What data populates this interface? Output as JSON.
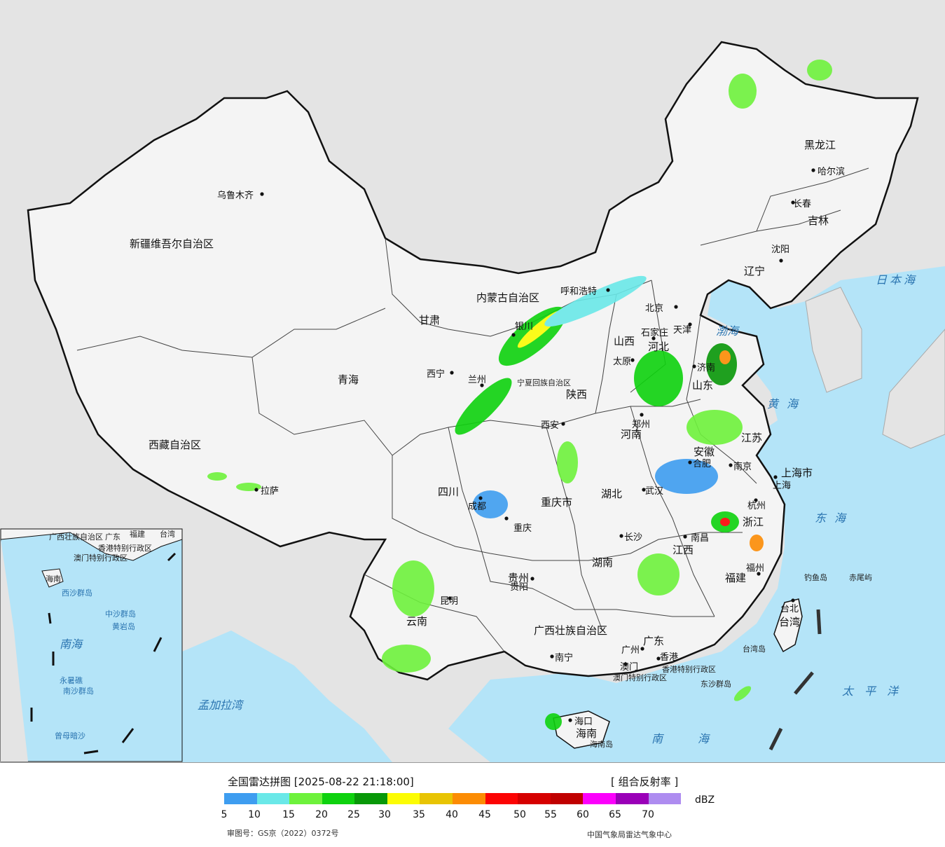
{
  "map": {
    "cities": [
      {
        "name": "乌鲁木齐"
      },
      {
        "name": "拉萨"
      },
      {
        "name": "西宁"
      },
      {
        "name": "银川"
      },
      {
        "name": "呼和浩特"
      },
      {
        "name": "北京"
      },
      {
        "name": "天津"
      },
      {
        "name": "石家庄"
      },
      {
        "name": "太原"
      },
      {
        "name": "济南"
      },
      {
        "name": "郑州"
      },
      {
        "name": "西安"
      },
      {
        "name": "兰州"
      },
      {
        "name": "成都"
      },
      {
        "name": "重庆"
      },
      {
        "name": "贵阳"
      },
      {
        "name": "昆明"
      },
      {
        "name": "南宁"
      },
      {
        "name": "广州"
      },
      {
        "name": "澳门"
      },
      {
        "name": "香港"
      },
      {
        "name": "海口"
      },
      {
        "name": "长沙"
      },
      {
        "name": "武汉"
      },
      {
        "name": "南昌"
      },
      {
        "name": "合肥"
      },
      {
        "name": "南京"
      },
      {
        "name": "上海"
      },
      {
        "name": "杭州"
      },
      {
        "name": "福州"
      },
      {
        "name": "台北"
      },
      {
        "name": "沈阳"
      },
      {
        "name": "长春"
      },
      {
        "name": "哈尔滨"
      }
    ],
    "regions": [
      "新疆维吾尔自治区",
      "西藏自治区",
      "青海",
      "甘肃",
      "内蒙古自治区",
      "宁夏回族自治区",
      "陕西",
      "山西",
      "河北",
      "山东",
      "河南",
      "四川",
      "重庆市",
      "湖北",
      "安徽",
      "江苏",
      "上海市",
      "浙江",
      "贵州",
      "湖南",
      "江西",
      "福建",
      "云南",
      "广西壮族自治区",
      "广东",
      "香港特别行政区",
      "澳门特别行政区",
      "海南",
      "台湾",
      "辽宁",
      "吉林",
      "黑龙江"
    ],
    "seas": [
      "日本海",
      "渤海",
      "黄海",
      "东海",
      "太平洋",
      "南海",
      "孟加拉湾"
    ],
    "islands": [
      "钓鱼岛",
      "赤尾屿",
      "台湾岛",
      "东沙群岛",
      "海南岛"
    ],
    "inset_labels": [
      "广西壮族自治区",
      "广东",
      "福建",
      "台湾",
      "澳门特别行政区",
      "香港特别行政区",
      "海南",
      "西沙群岛",
      "中沙群岛",
      "黄岩岛",
      "南海",
      "南沙群岛",
      "永暑礁",
      "曾母暗沙"
    ],
    "colors": {
      "sea": "#b4e4f8",
      "land": "#f2f2f2",
      "outside": "#e4e4e4",
      "border": "#111111"
    }
  },
  "legend": {
    "title": "全国雷达拼图 [2025-08-22 21:18:00]",
    "product": "[ 组合反射率 ]",
    "unit": "dBZ",
    "ticks": [
      "5",
      "10",
      "15",
      "20",
      "25",
      "30",
      "35",
      "40",
      "45",
      "50",
      "55",
      "60",
      "65",
      "70"
    ],
    "colors": [
      "#3e9df0",
      "#6ae8e8",
      "#6ef23c",
      "#0ed20e",
      "#089808",
      "#fcfc04",
      "#e8c404",
      "#fc8c04",
      "#fc0404",
      "#d60000",
      "#c00000",
      "#fc00fc",
      "#9a00b8",
      "#ae8cf0"
    ],
    "review_number": "审图号：GS京（2022）0372号",
    "credit": "中国气象局雷达气象中心"
  }
}
